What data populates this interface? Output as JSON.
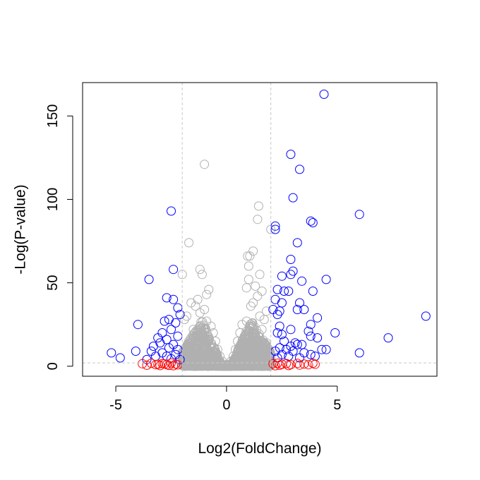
{
  "chart_data": {
    "type": "scatter",
    "title": "",
    "xlabel": "Log2(FoldChange)",
    "ylabel": "-Log(P-value)",
    "xlim": [
      -6.5,
      9.5
    ],
    "ylim": [
      -6,
      170
    ],
    "x_ticks": [
      -5,
      0,
      5
    ],
    "y_ticks": [
      0,
      50,
      100,
      150
    ],
    "grid": false,
    "legend": "none",
    "thresholds": {
      "x": [
        -2,
        2
      ],
      "y": 2,
      "style": "dashed"
    },
    "colors": {
      "down_significant": "#0000ff",
      "up_significant": "#0000ff",
      "fold_change_only": "#ff0000",
      "not_significant": "#b0b0b0",
      "threshold_line": "#c8c8c8"
    },
    "series": [
      {
        "color_key": "not_significant",
        "points": [
          [
            -1.0,
            121
          ],
          [
            1.45,
            96
          ],
          [
            1.4,
            88
          ],
          [
            2.0,
            82
          ],
          [
            1.2,
            69
          ],
          [
            1.05,
            66
          ],
          [
            0.95,
            66
          ],
          [
            1.0,
            60
          ],
          [
            -1.2,
            58
          ],
          [
            -1.7,
            74
          ],
          [
            -1.1,
            55
          ],
          [
            -2.0,
            55
          ],
          [
            1.5,
            55
          ],
          [
            1.0,
            52
          ],
          [
            1.3,
            48
          ],
          [
            0.9,
            47
          ],
          [
            -0.8,
            46
          ],
          [
            -0.9,
            43
          ],
          [
            -1.3,
            40
          ],
          [
            1.6,
            45
          ],
          [
            1.4,
            42
          ],
          [
            -1.6,
            38
          ],
          [
            -1.4,
            36
          ],
          [
            -1.0,
            34
          ],
          [
            -1.2,
            32
          ],
          [
            1.2,
            38
          ],
          [
            1.1,
            36
          ],
          [
            1.5,
            30
          ],
          [
            -1.8,
            30
          ],
          [
            -1.9,
            28
          ],
          [
            1.8,
            33
          ],
          [
            1.7,
            28
          ],
          [
            -0.9,
            27
          ],
          [
            0.9,
            27
          ],
          [
            -0.7,
            24
          ],
          [
            0.7,
            25
          ],
          [
            -1.5,
            22
          ],
          [
            1.6,
            22
          ],
          [
            -0.6,
            20
          ],
          [
            0.6,
            20
          ],
          [
            -1.1,
            18
          ],
          [
            1.2,
            19
          ],
          [
            -0.5,
            15
          ],
          [
            0.5,
            15
          ],
          [
            -1.7,
            15
          ],
          [
            1.8,
            14
          ],
          [
            -0.4,
            10
          ],
          [
            0.4,
            10
          ],
          [
            -1.3,
            12
          ],
          [
            1.3,
            12
          ],
          [
            -0.3,
            6
          ],
          [
            0.3,
            6
          ],
          [
            -0.9,
            8
          ],
          [
            0.9,
            8
          ],
          [
            -0.2,
            3
          ],
          [
            0.2,
            3
          ],
          [
            -0.6,
            4
          ],
          [
            0.6,
            4
          ],
          [
            -1.5,
            5
          ],
          [
            1.5,
            5
          ],
          [
            0.0,
            1
          ],
          [
            -1.0,
            2
          ],
          [
            1.0,
            2
          ],
          [
            -1.9,
            8
          ],
          [
            1.9,
            8
          ]
        ]
      },
      {
        "color_key": "down_significant",
        "points": [
          [
            -2.5,
            93
          ],
          [
            -2.4,
            58
          ],
          [
            -3.5,
            52
          ],
          [
            -2.7,
            41
          ],
          [
            -2.4,
            40
          ],
          [
            -2.2,
            35
          ],
          [
            -2.1,
            31
          ],
          [
            -2.6,
            28
          ],
          [
            -2.8,
            27
          ],
          [
            -2.3,
            26
          ],
          [
            -4.0,
            25
          ],
          [
            -2.5,
            22
          ],
          [
            -2.9,
            20
          ],
          [
            -2.2,
            18
          ],
          [
            -3.1,
            17
          ],
          [
            -2.7,
            16
          ],
          [
            -3.0,
            14
          ],
          [
            -2.4,
            13
          ],
          [
            -3.3,
            12
          ],
          [
            -2.6,
            11
          ],
          [
            -2.2,
            10
          ],
          [
            -3.4,
            9
          ],
          [
            -4.1,
            9
          ],
          [
            -2.9,
            8
          ],
          [
            -5.2,
            8
          ],
          [
            -2.3,
            7
          ],
          [
            -2.7,
            6
          ],
          [
            -3.2,
            6
          ],
          [
            -4.8,
            5
          ],
          [
            -2.5,
            4.5
          ],
          [
            -2.1,
            4
          ],
          [
            -3.6,
            4
          ]
        ]
      },
      {
        "color_key": "up_significant",
        "points": [
          [
            4.4,
            163
          ],
          [
            2.9,
            127
          ],
          [
            3.3,
            118
          ],
          [
            3.0,
            101
          ],
          [
            6.0,
            91
          ],
          [
            3.8,
            87
          ],
          [
            3.9,
            86
          ],
          [
            2.2,
            84
          ],
          [
            2.2,
            82
          ],
          [
            3.2,
            74
          ],
          [
            2.9,
            64
          ],
          [
            3.0,
            57
          ],
          [
            2.9,
            55
          ],
          [
            2.5,
            54
          ],
          [
            4.5,
            52
          ],
          [
            3.4,
            51
          ],
          [
            3.9,
            45
          ],
          [
            2.8,
            45
          ],
          [
            2.6,
            45
          ],
          [
            2.3,
            46
          ],
          [
            2.2,
            40
          ],
          [
            2.5,
            38
          ],
          [
            3.3,
            38
          ],
          [
            2.1,
            34
          ],
          [
            3.2,
            34
          ],
          [
            2.4,
            33
          ],
          [
            3.5,
            34
          ],
          [
            2.3,
            31
          ],
          [
            4.1,
            29
          ],
          [
            9.0,
            30
          ],
          [
            3.8,
            25
          ],
          [
            2.4,
            24
          ],
          [
            3.7,
            21
          ],
          [
            2.9,
            22
          ],
          [
            2.3,
            20
          ],
          [
            2.5,
            19
          ],
          [
            4.9,
            20
          ],
          [
            3.8,
            18
          ],
          [
            4.1,
            17
          ],
          [
            7.3,
            17
          ],
          [
            2.6,
            15
          ],
          [
            3.1,
            14
          ],
          [
            3.4,
            13
          ],
          [
            2.9,
            12
          ],
          [
            3.2,
            13
          ],
          [
            2.4,
            11
          ],
          [
            2.7,
            10
          ],
          [
            4.3,
            10
          ],
          [
            4.5,
            10
          ],
          [
            3.0,
            9
          ],
          [
            2.2,
            9
          ],
          [
            3.5,
            8
          ],
          [
            6.0,
            8
          ],
          [
            2.5,
            7
          ],
          [
            3.8,
            7
          ],
          [
            2.8,
            6
          ],
          [
            4.0,
            6
          ],
          [
            2.3,
            5
          ],
          [
            3.3,
            5
          ]
        ]
      },
      {
        "color_key": "fold_change_only",
        "points": [
          [
            -3.8,
            1.5
          ],
          [
            -3.4,
            1.8
          ],
          [
            -3.1,
            1.2
          ],
          [
            -2.9,
            1.6
          ],
          [
            -2.7,
            1.0
          ],
          [
            -2.5,
            1.9
          ],
          [
            -2.3,
            1.3
          ],
          [
            -2.2,
            0.8
          ],
          [
            -3.6,
            0.6
          ],
          [
            -2.6,
            0.5
          ],
          [
            -3.0,
            0.4
          ],
          [
            -2.4,
            0.3
          ],
          [
            -2.8,
            1.4
          ],
          [
            -3.2,
            0.9
          ],
          [
            2.1,
            1.5
          ],
          [
            2.3,
            1.8
          ],
          [
            2.5,
            1.2
          ],
          [
            2.7,
            1.6
          ],
          [
            2.9,
            1.0
          ],
          [
            3.2,
            1.7
          ],
          [
            3.5,
            1.3
          ],
          [
            3.9,
            1.8
          ],
          [
            4.0,
            1.1
          ],
          [
            2.4,
            0.6
          ],
          [
            2.8,
            0.4
          ],
          [
            3.3,
            0.7
          ],
          [
            3.7,
            0.9
          ],
          [
            2.2,
            0.3
          ]
        ]
      }
    ],
    "background_cloud": {
      "color_key": "not_significant",
      "note_free_density": true
    }
  }
}
